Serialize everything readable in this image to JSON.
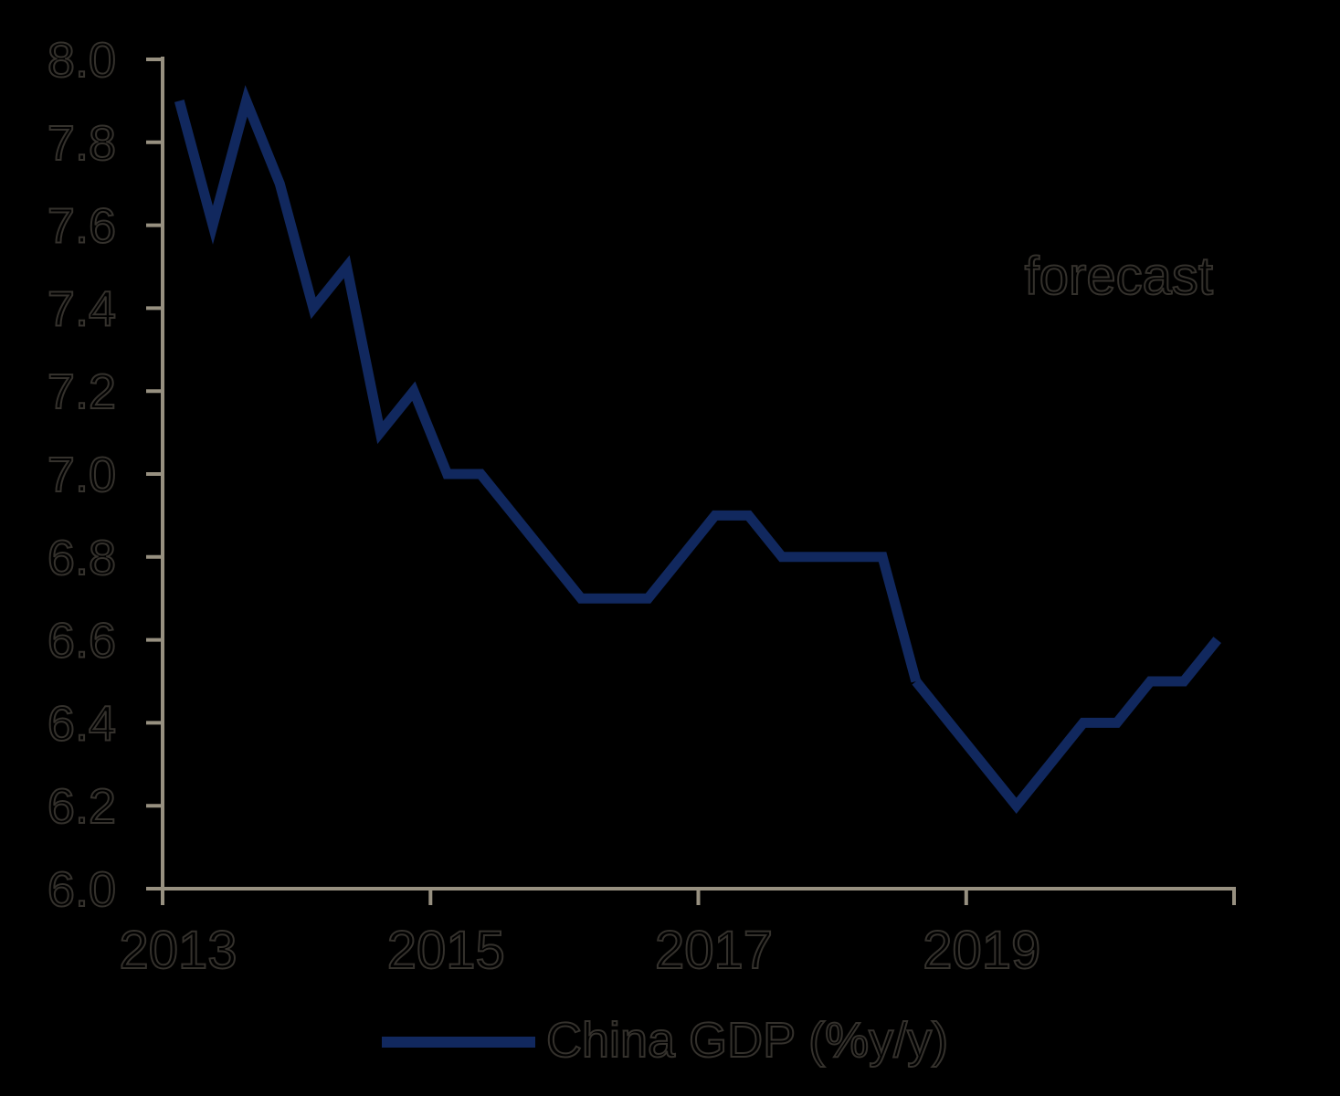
{
  "background_color": "#000000",
  "text_outline_color": "#34312c",
  "axis": {
    "color": "#979080",
    "y_tick_labels": [
      "8.0",
      "7.8",
      "7.6",
      "7.4",
      "7.2",
      "7.0",
      "6.8",
      "6.6",
      "6.4",
      "6.2",
      "6.0"
    ],
    "x_tick_labels": [
      "2013",
      "2015",
      "2017",
      "2019"
    ],
    "x_tick_count": 5
  },
  "annotations": {
    "forecast_label": "forecast"
  },
  "legend": {
    "label": "China GDP (%y/y)",
    "line_color": "#11285e"
  },
  "chart_data": {
    "type": "line",
    "title": "",
    "xlabel": "",
    "ylabel": "",
    "ylim": [
      6.0,
      8.0
    ],
    "ytick_step": 0.2,
    "grid": false,
    "legend_position": "bottom",
    "x_frequency": "quarterly",
    "categories": [
      "2013Q1",
      "2013Q2",
      "2013Q3",
      "2013Q4",
      "2014Q1",
      "2014Q2",
      "2014Q3",
      "2014Q4",
      "2015Q1",
      "2015Q2",
      "2015Q3",
      "2015Q4",
      "2016Q1",
      "2016Q2",
      "2016Q3",
      "2016Q4",
      "2017Q1",
      "2017Q2",
      "2017Q3",
      "2017Q4",
      "2018Q1",
      "2018Q2",
      "2018Q3",
      "2018Q4",
      "2019Q1",
      "2019Q2",
      "2019Q3",
      "2019Q4",
      "2020Q1",
      "2020Q2",
      "2020Q3",
      "2020Q4"
    ],
    "xtick_years": [
      "2013",
      "2015",
      "2017",
      "2019",
      ""
    ],
    "series": [
      {
        "name": "China GDP (%y/y)",
        "color": "#11285e",
        "forecast_start_index": 22,
        "values": [
          7.9,
          7.6,
          7.9,
          7.7,
          7.4,
          7.5,
          7.1,
          7.2,
          7.0,
          7.0,
          6.9,
          6.8,
          6.7,
          6.7,
          6.7,
          6.8,
          6.9,
          6.9,
          6.8,
          6.8,
          6.8,
          6.8,
          6.5,
          6.4,
          6.3,
          6.2,
          6.3,
          6.4,
          6.4,
          6.5,
          6.5,
          6.6
        ]
      }
    ],
    "annotation": "forecast"
  }
}
